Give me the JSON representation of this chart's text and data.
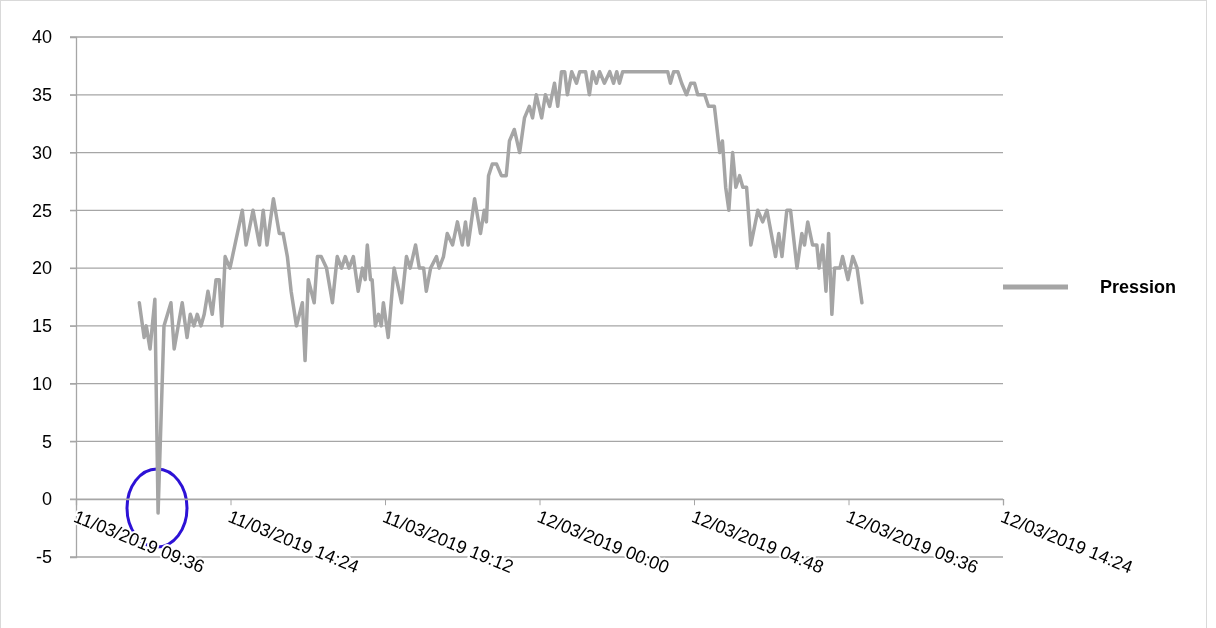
{
  "chart_data": {
    "type": "line",
    "legend": "right",
    "grid": "y",
    "xlim": [
      "2019-03-11T09:36",
      "2019-03-12T14:24"
    ],
    "xticks": [
      {
        "value": "2019-03-11T09:36",
        "label": "11/03/2019 09:36"
      },
      {
        "value": "2019-03-11T14:24",
        "label": "11/03/2019 14:24"
      },
      {
        "value": "2019-03-11T19:12",
        "label": "11/03/2019 19:12"
      },
      {
        "value": "2019-03-12T00:00",
        "label": "12/03/2019 00:00"
      },
      {
        "value": "2019-03-12T04:48",
        "label": "12/03/2019 04:48"
      },
      {
        "value": "2019-03-12T09:36",
        "label": "12/03/2019 09:36"
      },
      {
        "value": "2019-03-12T14:24",
        "label": "12/03/2019 14:24"
      }
    ],
    "ylim": [
      -5,
      40
    ],
    "yticks": [
      -5,
      0,
      5,
      10,
      15,
      20,
      25,
      30,
      35,
      40
    ],
    "x": [
      "2019-03-11T11:34",
      "2019-03-11T11:43",
      "2019-03-11T11:47",
      "2019-03-11T11:54",
      "2019-03-11T12:03",
      "2019-03-11T12:09",
      "2019-03-11T12:20",
      "2019-03-11T12:33",
      "2019-03-11T12:39",
      "2019-03-11T12:54",
      "2019-03-11T13:03",
      "2019-03-11T13:09",
      "2019-03-11T13:16",
      "2019-03-11T13:22",
      "2019-03-11T13:29",
      "2019-03-11T13:35",
      "2019-03-11T13:42",
      "2019-03-11T13:50",
      "2019-03-11T13:57",
      "2019-03-11T14:03",
      "2019-03-11T14:08",
      "2019-03-11T14:14",
      "2019-03-11T14:23",
      "2019-03-11T14:46",
      "2019-03-11T14:53",
      "2019-03-11T15:06",
      "2019-03-11T15:18",
      "2019-03-11T15:25",
      "2019-03-11T15:32",
      "2019-03-11T15:44",
      "2019-03-11T15:55",
      "2019-03-11T16:02",
      "2019-03-11T16:10",
      "2019-03-11T16:17",
      "2019-03-11T16:27",
      "2019-03-11T16:38",
      "2019-03-11T16:43",
      "2019-03-11T16:49",
      "2019-03-11T17:00",
      "2019-03-11T17:06",
      "2019-03-11T17:13",
      "2019-03-11T17:23",
      "2019-03-11T17:34",
      "2019-03-11T17:43",
      "2019-03-11T17:51",
      "2019-03-11T17:58",
      "2019-03-11T18:05",
      "2019-03-11T18:13",
      "2019-03-11T18:22",
      "2019-03-11T18:30",
      "2019-03-11T18:35",
      "2019-03-11T18:39",
      "2019-03-11T18:45",
      "2019-03-11T18:48",
      "2019-03-11T18:54",
      "2019-03-11T19:00",
      "2019-03-11T19:05",
      "2019-03-11T19:09",
      "2019-03-11T19:18",
      "2019-03-11T19:29",
      "2019-03-11T19:43",
      "2019-03-11T19:52",
      "2019-03-11T19:59",
      "2019-03-11T20:09",
      "2019-03-11T20:16",
      "2019-03-11T20:24",
      "2019-03-11T20:29",
      "2019-03-11T20:37",
      "2019-03-11T20:48",
      "2019-03-11T20:53",
      "2019-03-11T21:01",
      "2019-03-11T21:08",
      "2019-03-11T21:18",
      "2019-03-11T21:27",
      "2019-03-11T21:36",
      "2019-03-11T21:42",
      "2019-03-11T21:47",
      "2019-03-11T21:59",
      "2019-03-11T22:10",
      "2019-03-11T22:17",
      "2019-03-11T22:21",
      "2019-03-11T22:25",
      "2019-03-11T22:32",
      "2019-03-11T22:40",
      "2019-03-11T22:49",
      "2019-03-11T22:58",
      "2019-03-11T23:04",
      "2019-03-11T23:13",
      "2019-03-11T23:23",
      "2019-03-11T23:32",
      "2019-03-11T23:41",
      "2019-03-11T23:47",
      "2019-03-11T23:54",
      "2019-03-12T00:04",
      "2019-03-12T00:11",
      "2019-03-12T00:19",
      "2019-03-12T00:28",
      "2019-03-12T00:34",
      "2019-03-12T00:41",
      "2019-03-12T00:47",
      "2019-03-12T00:52",
      "2019-03-12T01:00",
      "2019-03-12T01:09",
      "2019-03-12T01:15",
      "2019-03-12T01:26",
      "2019-03-12T01:33",
      "2019-03-12T01:39",
      "2019-03-12T01:46",
      "2019-03-12T01:52",
      "2019-03-12T02:01",
      "2019-03-12T02:11",
      "2019-03-12T02:18",
      "2019-03-12T02:24",
      "2019-03-12T02:29",
      "2019-03-12T02:35",
      "2019-03-12T03:59",
      "2019-03-12T04:04",
      "2019-03-12T04:10",
      "2019-03-12T04:18",
      "2019-03-12T04:25",
      "2019-03-12T04:34",
      "2019-03-12T04:42",
      "2019-03-12T04:49",
      "2019-03-12T04:55",
      "2019-03-12T05:08",
      "2019-03-12T05:15",
      "2019-03-12T05:26",
      "2019-03-12T05:36",
      "2019-03-12T05:41",
      "2019-03-12T05:47",
      "2019-03-12T05:53",
      "2019-03-12T06:00",
      "2019-03-12T06:06",
      "2019-03-12T06:13",
      "2019-03-12T06:19",
      "2019-03-12T06:26",
      "2019-03-12T06:34",
      "2019-03-12T06:47",
      "2019-03-12T06:56",
      "2019-03-12T07:04",
      "2019-03-12T07:20",
      "2019-03-12T07:26",
      "2019-03-12T07:32",
      "2019-03-12T07:41",
      "2019-03-12T07:48",
      "2019-03-12T08:00",
      "2019-03-12T08:09",
      "2019-03-12T08:14",
      "2019-03-12T08:20",
      "2019-03-12T08:29",
      "2019-03-12T08:37",
      "2019-03-12T08:41",
      "2019-03-12T08:48",
      "2019-03-12T08:54",
      "2019-03-12T08:59",
      "2019-03-12T09:05",
      "2019-03-12T09:10",
      "2019-03-12T09:20",
      "2019-03-12T09:25",
      "2019-03-12T09:35",
      "2019-03-12T09:44",
      "2019-03-12T09:52",
      "2019-03-12T10:01"
    ],
    "series": [
      {
        "name": "Pression",
        "color": "#a5a5a5",
        "values": [
          17,
          14,
          15,
          13,
          17.3,
          -1.2,
          15,
          17,
          13,
          17,
          14,
          16,
          15,
          16,
          15,
          16,
          18,
          16,
          19,
          19,
          15,
          21,
          20,
          25,
          22,
          25,
          22,
          25,
          22,
          26,
          23,
          23,
          21,
          18,
          15,
          17,
          12,
          19,
          17,
          21,
          21,
          20,
          17,
          21,
          20,
          21,
          20,
          21,
          18,
          20,
          19,
          22,
          19,
          19,
          15,
          16,
          15,
          17,
          14,
          20,
          17,
          21,
          20,
          22,
          20,
          20,
          18,
          20,
          21,
          20,
          21,
          23,
          22,
          24,
          22,
          24,
          22,
          26,
          23,
          25,
          24,
          28,
          29,
          29,
          28,
          28,
          31,
          32,
          30,
          33,
          34,
          33,
          35,
          33,
          35,
          34,
          36,
          34,
          37,
          37,
          35,
          37,
          36,
          37,
          37,
          35,
          37,
          36,
          37,
          36,
          37,
          36,
          37,
          36,
          37,
          37,
          36,
          37,
          37,
          36,
          35,
          36,
          36,
          35,
          35,
          34,
          34,
          30,
          31,
          27,
          25,
          30,
          27,
          28,
          27,
          27,
          22,
          25,
          24,
          25,
          21,
          23,
          21,
          25,
          25,
          20,
          23,
          22,
          24,
          22,
          22,
          20,
          22,
          18,
          23,
          16,
          20,
          20,
          21,
          19,
          21,
          20,
          17
        ]
      }
    ]
  }
}
